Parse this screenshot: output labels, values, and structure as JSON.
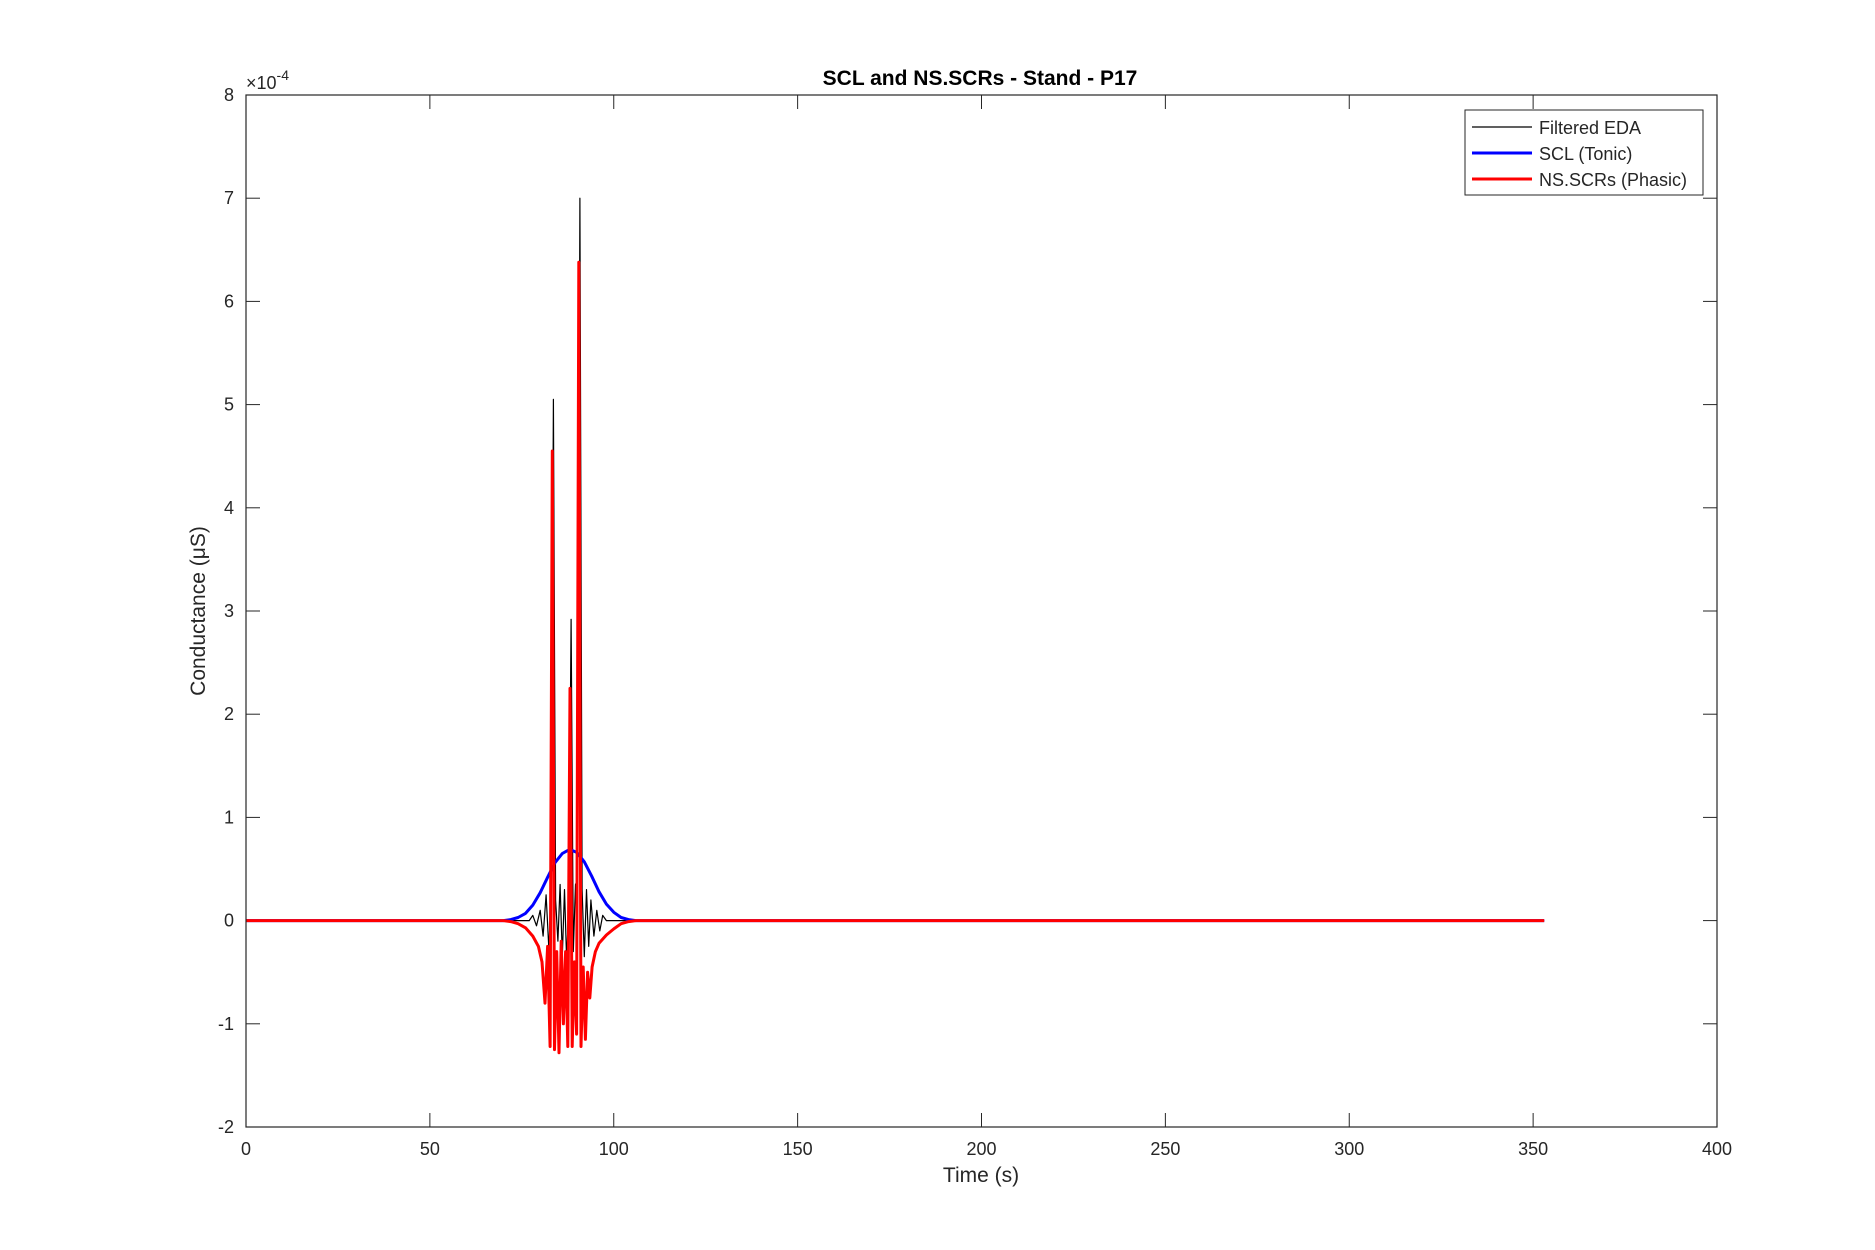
{
  "chart_data": {
    "type": "line",
    "title": "SCL and NS.SCRs - Stand - P17",
    "xlabel": "Time (s)",
    "ylabel": "Conductance (μS)",
    "y_exponent_label": "×10",
    "y_exponent_power": "-4",
    "xlim": [
      0,
      400
    ],
    "ylim": [
      -2,
      8
    ],
    "y_scale": 0.0001,
    "x_ticks": [
      0,
      50,
      100,
      150,
      200,
      250,
      300,
      350,
      400
    ],
    "y_ticks": [
      -2,
      -1,
      0,
      1,
      2,
      3,
      4,
      5,
      6,
      7,
      8
    ],
    "x_tick_labels": [
      "0",
      "50",
      "100",
      "150",
      "200",
      "250",
      "300",
      "350",
      "400"
    ],
    "y_tick_labels": [
      "-2",
      "-1",
      "0",
      "1",
      "2",
      "3",
      "4",
      "5",
      "6",
      "7",
      "8"
    ],
    "grid": false,
    "legend_position": "top-right",
    "series": [
      {
        "name": "Filtered EDA",
        "color": "#000000",
        "x": [
          0,
          72,
          77,
          78,
          79,
          80,
          80.8,
          81.6,
          82.4,
          83.0,
          83.6,
          84.2,
          84.8,
          85.4,
          86.0,
          86.6,
          87.2,
          87.8,
          88.4,
          89.0,
          89.6,
          90.2,
          90.8,
          91.4,
          92.0,
          92.6,
          93.2,
          93.8,
          94.6,
          95.4,
          96.2,
          97,
          98,
          100,
          353
        ],
        "y": [
          0,
          0,
          0,
          0.05,
          -0.05,
          0.1,
          -0.15,
          0.25,
          -0.3,
          0.45,
          5.05,
          0.2,
          -0.2,
          0.35,
          -0.35,
          0.3,
          -0.4,
          0.25,
          2.92,
          -0.3,
          0.35,
          0.4,
          7.0,
          0.3,
          -0.35,
          0.3,
          -0.25,
          0.2,
          -0.15,
          0.1,
          -0.1,
          0.05,
          0,
          0,
          0
        ]
      },
      {
        "name": "SCL (Tonic)",
        "color": "#0000ff",
        "x": [
          0,
          70,
          72,
          74,
          76,
          78,
          80,
          82,
          84,
          86,
          88,
          90,
          92,
          94,
          96,
          98,
          100,
          102,
          104,
          106,
          110,
          353
        ],
        "y": [
          0,
          0,
          0.01,
          0.03,
          0.07,
          0.15,
          0.27,
          0.42,
          0.56,
          0.65,
          0.69,
          0.66,
          0.57,
          0.43,
          0.28,
          0.16,
          0.08,
          0.03,
          0.01,
          0,
          0,
          0
        ]
      },
      {
        "name": "NS.SCRs (Phasic)",
        "color": "#ff0000",
        "x": [
          0,
          70,
          72,
          74,
          76,
          78,
          79.5,
          80.5,
          81.3,
          82.0,
          82.7,
          83.3,
          83.9,
          84.5,
          85.1,
          85.7,
          86.3,
          86.9,
          87.5,
          88.1,
          88.7,
          89.3,
          89.9,
          90.5,
          91.1,
          91.7,
          92.3,
          92.9,
          93.5,
          94.1,
          95,
          96,
          98,
          100,
          102,
          104,
          106,
          110,
          353
        ],
        "y": [
          0,
          0,
          -0.01,
          -0.03,
          -0.07,
          -0.15,
          -0.25,
          -0.4,
          -0.8,
          -0.25,
          -1.22,
          4.55,
          -1.25,
          -0.3,
          -1.28,
          -0.2,
          -1.0,
          -0.3,
          -1.22,
          2.25,
          -1.22,
          -0.4,
          -1.1,
          6.38,
          -1.22,
          -0.45,
          -1.15,
          -0.5,
          -0.75,
          -0.45,
          -0.3,
          -0.22,
          -0.14,
          -0.08,
          -0.03,
          -0.01,
          0,
          0,
          0
        ]
      }
    ]
  }
}
